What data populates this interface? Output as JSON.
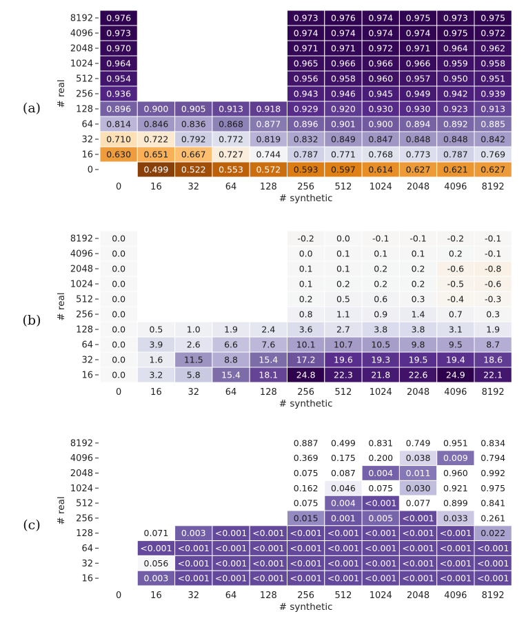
{
  "chart_data": [
    {
      "type": "heatmap",
      "panel_label": "(a)",
      "xlabel": "# synthetic",
      "ylabel": "# real",
      "x_ticks": [
        "0",
        "16",
        "32",
        "64",
        "128",
        "256",
        "512",
        "1024",
        "2048",
        "4096",
        "8192"
      ],
      "y_ticks": [
        "8192",
        "4096",
        "2048",
        "1024",
        "512",
        "256",
        "128",
        "64",
        "32",
        "16",
        "0"
      ],
      "colormap": "PuOr (orange = low, purple = high)",
      "range": [
        0.49,
        0.98
      ],
      "values": [
        [
          "0.976",
          null,
          null,
          null,
          null,
          "0.973",
          "0.976",
          "0.974",
          "0.975",
          "0.973",
          "0.975"
        ],
        [
          "0.973",
          null,
          null,
          null,
          null,
          "0.974",
          "0.974",
          "0.974",
          "0.974",
          "0.975",
          "0.972"
        ],
        [
          "0.970",
          null,
          null,
          null,
          null,
          "0.971",
          "0.971",
          "0.972",
          "0.971",
          "0.964",
          "0.962"
        ],
        [
          "0.964",
          null,
          null,
          null,
          null,
          "0.965",
          "0.966",
          "0.966",
          "0.966",
          "0.959",
          "0.958"
        ],
        [
          "0.954",
          null,
          null,
          null,
          null,
          "0.956",
          "0.958",
          "0.960",
          "0.957",
          "0.950",
          "0.951"
        ],
        [
          "0.936",
          null,
          null,
          null,
          null,
          "0.943",
          "0.946",
          "0.945",
          "0.949",
          "0.942",
          "0.939"
        ],
        [
          "0.896",
          "0.900",
          "0.905",
          "0.913",
          "0.918",
          "0.929",
          "0.920",
          "0.930",
          "0.930",
          "0.923",
          "0.913"
        ],
        [
          "0.814",
          "0.846",
          "0.836",
          "0.868",
          "0.877",
          "0.896",
          "0.901",
          "0.900",
          "0.894",
          "0.892",
          "0.885"
        ],
        [
          "0.710",
          "0.722",
          "0.792",
          "0.772",
          "0.819",
          "0.832",
          "0.849",
          "0.847",
          "0.848",
          "0.848",
          "0.842"
        ],
        [
          "0.630",
          "0.651",
          "0.667",
          "0.727",
          "0.744",
          "0.787",
          "0.771",
          "0.768",
          "0.773",
          "0.787",
          "0.769"
        ],
        [
          null,
          "0.499",
          "0.522",
          "0.553",
          "0.572",
          "0.593",
          "0.597",
          "0.614",
          "0.627",
          "0.621",
          "0.627"
        ]
      ]
    },
    {
      "type": "heatmap",
      "panel_label": "(b)",
      "xlabel": "# synthetic",
      "ylabel": "# real",
      "x_ticks": [
        "0",
        "16",
        "32",
        "64",
        "128",
        "256",
        "512",
        "1024",
        "2048",
        "4096",
        "8192"
      ],
      "y_ticks": [
        "8192",
        "4096",
        "2048",
        "1024",
        "512",
        "256",
        "128",
        "64",
        "32",
        "16"
      ],
      "colormap": "PuOr (white = 0, purple = positive, orange = negative)",
      "range": [
        -25,
        25
      ],
      "values": [
        [
          "0.0",
          null,
          null,
          null,
          null,
          "-0.2",
          "0.0",
          "-0.1",
          "-0.1",
          "-0.2",
          "-0.1"
        ],
        [
          "0.0",
          null,
          null,
          null,
          null,
          "0.0",
          "0.1",
          "0.1",
          "0.1",
          "0.2",
          "-0.1"
        ],
        [
          "0.0",
          null,
          null,
          null,
          null,
          "0.1",
          "0.1",
          "0.2",
          "0.2",
          "-0.6",
          "-0.8"
        ],
        [
          "0.0",
          null,
          null,
          null,
          null,
          "0.1",
          "0.2",
          "0.2",
          "0.2",
          "-0.5",
          "-0.6"
        ],
        [
          "0.0",
          null,
          null,
          null,
          null,
          "0.2",
          "0.5",
          "0.6",
          "0.3",
          "-0.4",
          "-0.3"
        ],
        [
          "0.0",
          null,
          null,
          null,
          null,
          "0.8",
          "1.1",
          "0.9",
          "1.4",
          "0.7",
          "0.3"
        ],
        [
          "0.0",
          "0.5",
          "1.0",
          "1.9",
          "2.4",
          "3.6",
          "2.7",
          "3.8",
          "3.8",
          "3.1",
          "1.9"
        ],
        [
          "0.0",
          "3.9",
          "2.6",
          "6.6",
          "7.6",
          "10.1",
          "10.7",
          "10.5",
          "9.8",
          "9.5",
          "8.7"
        ],
        [
          "0.0",
          "1.6",
          "11.5",
          "8.8",
          "15.4",
          "17.2",
          "19.6",
          "19.3",
          "19.5",
          "19.4",
          "18.6"
        ],
        [
          "0.0",
          "3.2",
          "5.8",
          "15.4",
          "18.1",
          "24.8",
          "22.3",
          "21.8",
          "22.6",
          "24.9",
          "22.1"
        ]
      ]
    },
    {
      "type": "heatmap",
      "panel_label": "(c)",
      "xlabel": "# synthetic",
      "ylabel": "# real",
      "x_ticks": [
        "0",
        "16",
        "32",
        "64",
        "128",
        "256",
        "512",
        "1024",
        "2048",
        "4096",
        "8192"
      ],
      "y_ticks": [
        "8192",
        "4096",
        "2048",
        "1024",
        "512",
        "256",
        "128",
        "64",
        "32",
        "16"
      ],
      "colormap": "Purples reversed (small p-value = dark purple)",
      "values": [
        [
          null,
          null,
          null,
          null,
          null,
          "0.887",
          "0.499",
          "0.831",
          "0.749",
          "0.951",
          "0.834"
        ],
        [
          null,
          null,
          null,
          null,
          null,
          "0.369",
          "0.175",
          "0.200",
          "0.038",
          "0.009",
          "0.794"
        ],
        [
          null,
          null,
          null,
          null,
          null,
          "0.075",
          "0.087",
          "0.004",
          "0.011",
          "0.960",
          "0.992"
        ],
        [
          null,
          null,
          null,
          null,
          null,
          "0.162",
          "0.046",
          "0.075",
          "0.030",
          "0.921",
          "0.975"
        ],
        [
          null,
          null,
          null,
          null,
          null,
          "0.075",
          "0.004",
          "<0.001",
          "0.077",
          "0.899",
          "0.841"
        ],
        [
          null,
          null,
          null,
          null,
          null,
          "0.015",
          "0.001",
          "0.005",
          "<0.001",
          "0.033",
          "0.261"
        ],
        [
          null,
          "0.071",
          "0.003",
          "<0.001",
          "<0.001",
          "<0.001",
          "<0.001",
          "<0.001",
          "<0.001",
          "<0.001",
          "0.022"
        ],
        [
          null,
          "<0.001",
          "<0.001",
          "<0.001",
          "<0.001",
          "<0.001",
          "<0.001",
          "<0.001",
          "<0.001",
          "<0.001",
          "<0.001"
        ],
        [
          null,
          "0.056",
          "<0.001",
          "<0.001",
          "<0.001",
          "<0.001",
          "<0.001",
          "<0.001",
          "<0.001",
          "<0.001",
          "<0.001"
        ],
        [
          null,
          "0.003",
          "<0.001",
          "<0.001",
          "<0.001",
          "<0.001",
          "<0.001",
          "<0.001",
          "<0.001",
          "<0.001",
          "<0.001"
        ]
      ]
    }
  ]
}
